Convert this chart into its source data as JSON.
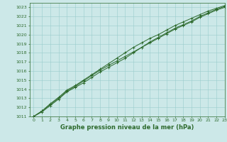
{
  "title": "Graphe pression niveau de la mer (hPa)",
  "xlim": [
    -0.5,
    23
  ],
  "ylim": [
    1011,
    1023.5
  ],
  "xticks": [
    0,
    1,
    2,
    3,
    4,
    5,
    6,
    7,
    8,
    9,
    10,
    11,
    12,
    13,
    14,
    15,
    16,
    17,
    18,
    19,
    20,
    21,
    22,
    23
  ],
  "yticks": [
    1011,
    1012,
    1013,
    1014,
    1015,
    1016,
    1017,
    1018,
    1019,
    1020,
    1021,
    1022,
    1023
  ],
  "bg_color": "#cce8e8",
  "grid_color": "#99cccc",
  "line_color": "#2d6a2d",
  "line1_y": [
    1011.0,
    1011.6,
    1012.3,
    1013.0,
    1013.8,
    1014.3,
    1014.9,
    1015.5,
    1016.1,
    1016.6,
    1017.1,
    1017.6,
    1018.1,
    1018.6,
    1019.1,
    1019.6,
    1020.1,
    1020.6,
    1021.0,
    1021.4,
    1021.9,
    1022.3,
    1022.7,
    1023.0
  ],
  "line2_y": [
    1011.0,
    1011.5,
    1012.2,
    1012.9,
    1013.7,
    1014.2,
    1014.7,
    1015.3,
    1015.9,
    1016.4,
    1016.9,
    1017.4,
    1018.0,
    1018.6,
    1019.2,
    1019.7,
    1020.2,
    1020.7,
    1021.1,
    1021.5,
    1022.0,
    1022.4,
    1022.8,
    1023.1
  ],
  "line3_y": [
    1011.0,
    1011.6,
    1012.4,
    1013.1,
    1013.9,
    1014.4,
    1015.0,
    1015.6,
    1016.2,
    1016.8,
    1017.4,
    1018.0,
    1018.6,
    1019.1,
    1019.6,
    1020.0,
    1020.5,
    1021.0,
    1021.4,
    1021.8,
    1022.2,
    1022.6,
    1022.9,
    1023.2
  ],
  "title_fontsize": 6,
  "tick_fontsize": 4.5
}
